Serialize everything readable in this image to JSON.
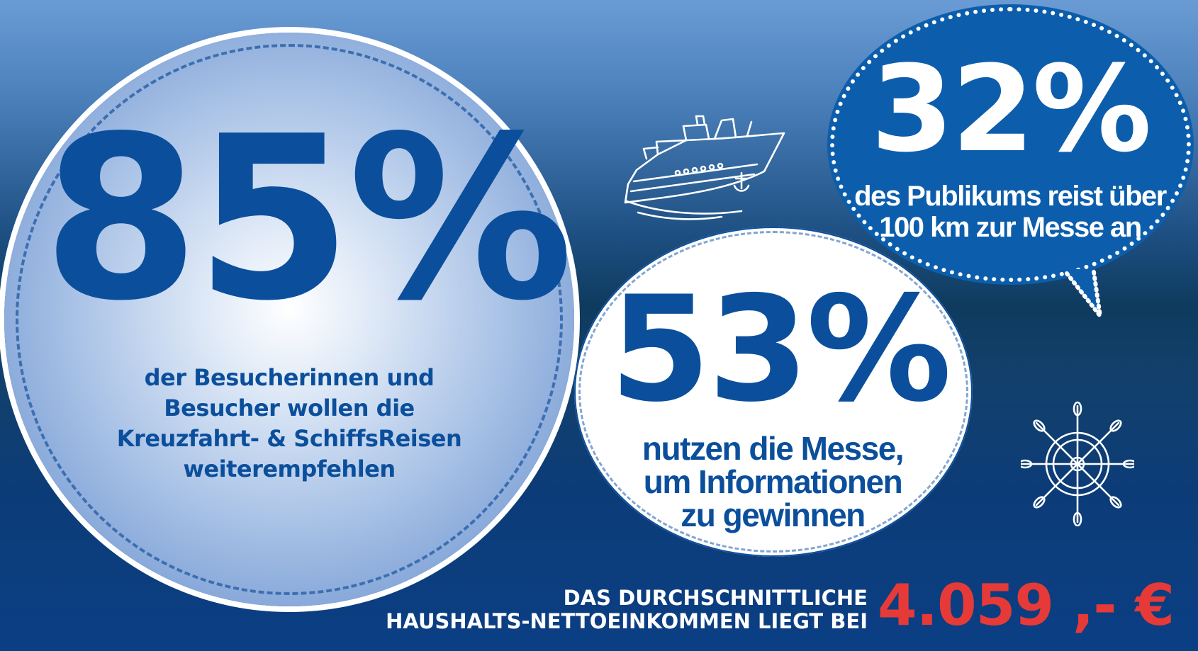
{
  "stats": {
    "recommend": {
      "value": "85%",
      "text_lines": [
        "der Besucherinnen und",
        "Besucher wollen die",
        "Kreuzfahrt- & SchiffsReisen",
        "weiterempfehlen"
      ]
    },
    "information": {
      "value": "53%",
      "text_lines": [
        "nutzen die Messe,",
        "um Informationen",
        "zu gewinnen"
      ]
    },
    "distance": {
      "value": "32%",
      "text_lines": [
        "des Publikums reist über",
        "100 km zur Messe an"
      ]
    }
  },
  "income": {
    "label_lines": [
      "DAS DURCHSCHNITTLICHE",
      "HAUSHALTS-NETTOEINKOMMEN LIEGT BEI"
    ],
    "value": "4.059 ,- €"
  },
  "icons": {
    "ship": "cruise-ship-icon",
    "helm": "ship-wheel-icon"
  },
  "colors": {
    "accent_blue": "#0b4f9c",
    "speech_blue": "#0c5eac",
    "price_red": "#e53a37",
    "white": "#ffffff"
  }
}
